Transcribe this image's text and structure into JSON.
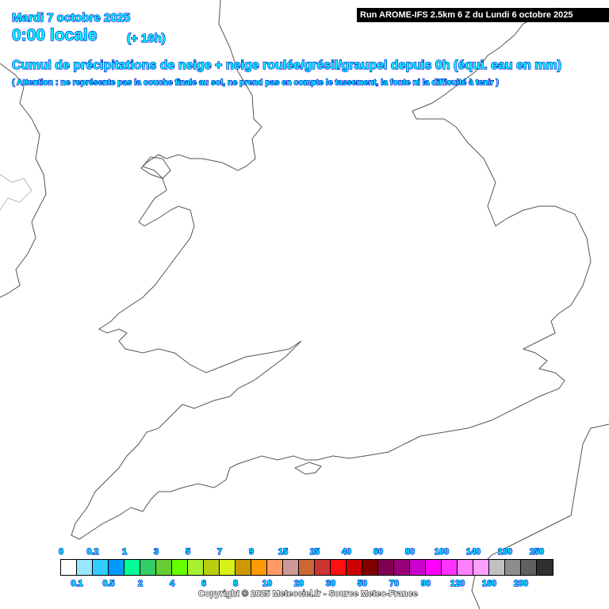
{
  "header": {
    "date": "Mardi 7 octobre 2025",
    "time": "0:00 locale",
    "lead": "(+ 16h)",
    "title": "Cumul de précipitations de neige + neige roulée/grésil/graupel depuis 0h (équi. eau en mm)",
    "note": "( Attention : ne représente pas la couche finale au sol, ne prend pas en compte le tassement, la fonte ni la difficulté à tenir )",
    "run": "Run AROME-IFS 2.5km 6 Z du Lundi 6 octobre 2025"
  },
  "legend": {
    "colors": [
      "#ffffff",
      "#99e6ff",
      "#33ccff",
      "#0099ff",
      "#00ff99",
      "#33cc66",
      "#66cc33",
      "#66ff00",
      "#a8f030",
      "#b8cc10",
      "#d8f018",
      "#cc9900",
      "#ff9900",
      "#ff9966",
      "#cc9999",
      "#cc6633",
      "#cc3333",
      "#ff1010",
      "#cc0000",
      "#800000",
      "#800050",
      "#990077",
      "#cc00cc",
      "#ff00ff",
      "#ff33ff",
      "#ff80ff",
      "#ffa0ff",
      "#c0c0c0",
      "#8c8c8c",
      "#606060",
      "#303030"
    ],
    "top_labels": [
      "0",
      "0.2",
      "1",
      "3",
      "5",
      "7",
      "9",
      "15",
      "25",
      "40",
      "60",
      "80",
      "100",
      "140",
      "180",
      "250"
    ],
    "bottom_labels": [
      "0.1",
      "0.5",
      "2",
      "4",
      "6",
      "8",
      "10",
      "20",
      "30",
      "50",
      "70",
      "90",
      "120",
      "160",
      "200"
    ],
    "unit": "mm"
  },
  "copyright": "Copyright © 2025 Meteociel.fr - Source Meteo-France"
}
